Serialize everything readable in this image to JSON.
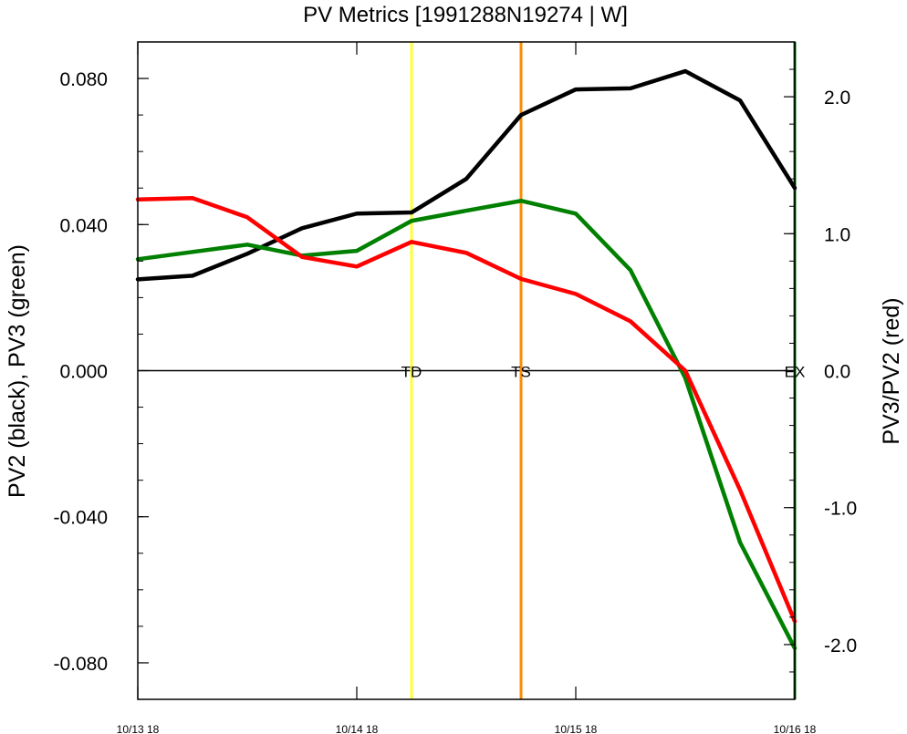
{
  "chart_data": {
    "type": "line",
    "title": "PV Metrics [1991288N19274 | W]",
    "ylabel_left": "PV2 (black), PV3 (green)",
    "ylabel_right": "PV3/PV2 (red)",
    "x_ticks": [
      "10/13 18",
      "10/14 18",
      "10/15 18",
      "10/16 18"
    ],
    "x": [
      0,
      1,
      2,
      3,
      4,
      5,
      6,
      7,
      8,
      9,
      10,
      11,
      12
    ],
    "xlim": [
      0,
      12
    ],
    "ylim_left": [
      -0.09,
      0.09
    ],
    "ylim_right": [
      -2.4,
      2.4
    ],
    "y_ticks_left": [
      {
        "value": 0.08,
        "label": "0.080"
      },
      {
        "value": 0.04,
        "label": "0.040"
      },
      {
        "value": 0.0,
        "label": "0.000"
      },
      {
        "value": -0.04,
        "label": "-0.040"
      },
      {
        "value": -0.08,
        "label": "-0.080"
      }
    ],
    "y_ticks_right": [
      {
        "value": 2.0,
        "label": "2.0"
      },
      {
        "value": 1.0,
        "label": "1.0"
      },
      {
        "value": 0.0,
        "label": "0.0"
      },
      {
        "value": -1.0,
        "label": "-1.0"
      },
      {
        "value": -2.0,
        "label": "-2.0"
      }
    ],
    "series": [
      {
        "axis": "left",
        "color": "#000000",
        "values": [
          0.025,
          0.026,
          0.032,
          0.039,
          0.043,
          0.0433,
          0.0525,
          0.07,
          0.077,
          0.0773,
          0.082,
          0.074,
          0.05
        ]
      },
      {
        "axis": "left",
        "color": "#008000",
        "values": [
          0.0305,
          0.0325,
          0.0345,
          0.0315,
          0.0328,
          0.041,
          0.0438,
          0.0465,
          0.043,
          0.0275,
          -0.002,
          -0.047,
          -0.076
        ]
      },
      {
        "axis": "right",
        "color": "#ff0000",
        "values": [
          1.25,
          1.26,
          1.12,
          0.83,
          0.76,
          0.94,
          0.86,
          0.67,
          0.56,
          0.36,
          0.0,
          -0.87,
          -1.83
        ]
      }
    ],
    "markers": [
      {
        "label": "TD",
        "x": 5,
        "color": "#ffff33"
      },
      {
        "label": "TS",
        "x": 7,
        "color": "#ff8c00"
      },
      {
        "label": "EX",
        "x": 12,
        "color": "#007a00"
      }
    ]
  }
}
